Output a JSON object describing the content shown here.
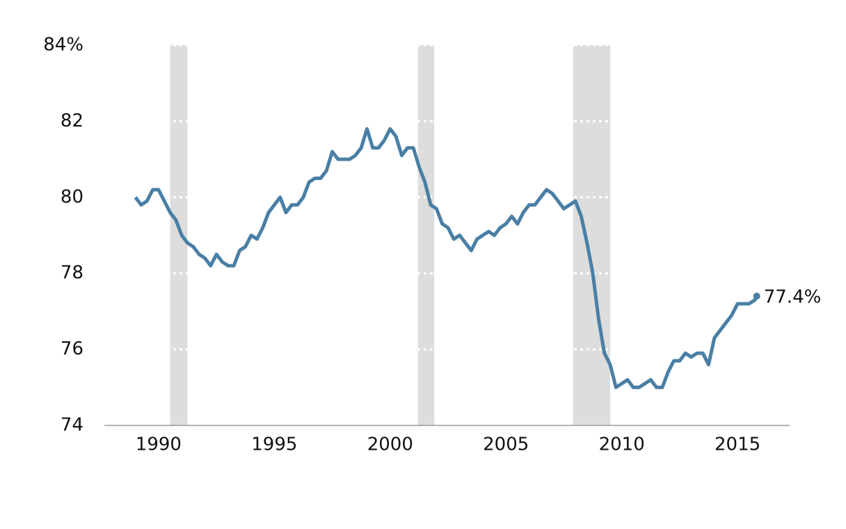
{
  "chart_data": {
    "type": "line",
    "x": [
      1989.0,
      1989.25,
      1989.5,
      1989.75,
      1990.0,
      1990.25,
      1990.5,
      1990.75,
      1991.0,
      1991.25,
      1991.5,
      1991.75,
      1992.0,
      1992.25,
      1992.5,
      1992.75,
      1993.0,
      1993.25,
      1993.5,
      1993.75,
      1994.0,
      1994.25,
      1994.5,
      1994.75,
      1995.0,
      1995.25,
      1995.5,
      1995.75,
      1996.0,
      1996.25,
      1996.5,
      1996.75,
      1997.0,
      1997.25,
      1997.5,
      1997.75,
      1998.0,
      1998.25,
      1998.5,
      1998.75,
      1999.0,
      1999.25,
      1999.5,
      1999.75,
      2000.0,
      2000.25,
      2000.5,
      2000.75,
      2001.0,
      2001.25,
      2001.5,
      2001.75,
      2002.0,
      2002.25,
      2002.5,
      2002.75,
      2003.0,
      2003.25,
      2003.5,
      2003.75,
      2004.0,
      2004.25,
      2004.5,
      2004.75,
      2005.0,
      2005.25,
      2005.5,
      2005.75,
      2006.0,
      2006.25,
      2006.5,
      2006.75,
      2007.0,
      2007.25,
      2007.5,
      2007.75,
      2008.0,
      2008.25,
      2008.5,
      2008.75,
      2009.0,
      2009.25,
      2009.5,
      2009.75,
      2010.0,
      2010.25,
      2010.5,
      2010.75,
      2011.0,
      2011.25,
      2011.5,
      2011.75,
      2012.0,
      2012.25,
      2012.5,
      2012.75,
      2013.0,
      2013.25,
      2013.5,
      2013.75,
      2014.0,
      2014.25,
      2014.5,
      2014.75,
      2015.0,
      2015.25,
      2015.5,
      2015.75,
      2015.83
    ],
    "series": [
      {
        "color": "#4a7fa5",
        "values": [
          80.0,
          79.8,
          79.9,
          80.2,
          80.2,
          79.9,
          79.6,
          79.4,
          79.0,
          78.8,
          78.7,
          78.5,
          78.4,
          78.2,
          78.5,
          78.3,
          78.2,
          78.2,
          78.6,
          78.7,
          79.0,
          78.9,
          79.2,
          79.6,
          79.8,
          80.0,
          79.6,
          79.8,
          79.8,
          80.0,
          80.4,
          80.5,
          80.5,
          80.7,
          81.2,
          81.0,
          81.0,
          81.0,
          81.1,
          81.3,
          81.8,
          81.3,
          81.3,
          81.5,
          81.8,
          81.6,
          81.1,
          81.3,
          81.3,
          80.8,
          80.4,
          79.8,
          79.7,
          79.3,
          79.2,
          78.9,
          79.0,
          78.8,
          78.6,
          78.9,
          79.0,
          79.1,
          79.0,
          79.2,
          79.3,
          79.5,
          79.3,
          79.6,
          79.8,
          79.8,
          80.0,
          80.2,
          80.1,
          79.9,
          79.7,
          79.8,
          79.9,
          79.5,
          78.8,
          78.0,
          76.8,
          75.9,
          75.6,
          75.0,
          75.1,
          75.2,
          75.0,
          75.0,
          75.1,
          75.2,
          75.0,
          75.0,
          75.4,
          75.7,
          75.7,
          75.9,
          75.8,
          75.9,
          75.9,
          75.6,
          76.3,
          76.5,
          76.7,
          76.9,
          77.2,
          77.2,
          77.2,
          77.3,
          77.4
        ]
      }
    ],
    "recessions": [
      [
        1990.5,
        1991.25
      ],
      [
        2001.2,
        2001.9
      ],
      [
        2007.9,
        2009.5
      ]
    ],
    "recession_color": "#dddddd",
    "annotations": [
      {
        "x": 2015.83,
        "y": 77.4,
        "text": "77.4%"
      }
    ],
    "xlim": [
      1987.66,
      2017.25
    ],
    "ylim": [
      74,
      84
    ],
    "xticks": [
      1990,
      1995,
      2000,
      2005,
      2010,
      2015
    ],
    "yticks": [
      74,
      76,
      78,
      80,
      82,
      {
        "value": 84,
        "label": "84%"
      }
    ],
    "grid": true
  }
}
